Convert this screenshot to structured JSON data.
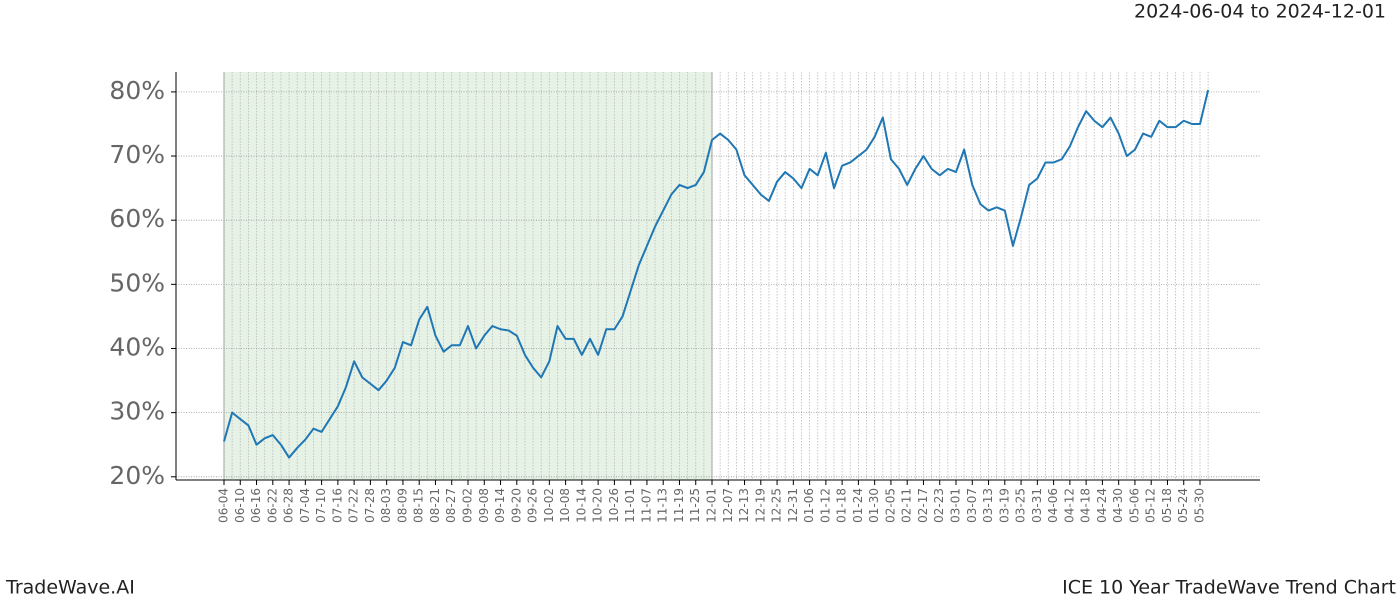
{
  "chart_data": {
    "type": "line",
    "title": "ICE 10 Year TradeWave Trend Chart",
    "subtitle": "2024-06-04 to 2024-12-01",
    "source": "TradeWave.AI",
    "color": "#1f77b4",
    "shade_color": "#e6f2e6",
    "shaded_range": [
      "06-04",
      "12-01"
    ],
    "grid": true,
    "ylim": [
      19.5,
      83.1
    ],
    "yticks": [
      {
        "value": 20,
        "label": "20%"
      },
      {
        "value": 30,
        "label": "30%"
      },
      {
        "value": 40,
        "label": "40%"
      },
      {
        "value": 50,
        "label": "50%"
      },
      {
        "value": 60,
        "label": "60%"
      },
      {
        "value": 70,
        "label": "70%"
      },
      {
        "value": 80,
        "label": "80%"
      }
    ],
    "categories": [
      "06-04",
      null,
      "06-10",
      null,
      "06-16",
      null,
      "06-22",
      null,
      "06-28",
      null,
      "07-04",
      null,
      "07-10",
      null,
      "07-16",
      null,
      "07-22",
      null,
      "07-28",
      null,
      "08-03",
      null,
      "08-09",
      null,
      "08-15",
      null,
      "08-21",
      null,
      "08-27",
      null,
      "09-02",
      null,
      "09-08",
      null,
      "09-14",
      null,
      "09-20",
      null,
      "09-26",
      null,
      "10-02",
      null,
      "10-08",
      null,
      "10-14",
      null,
      "10-20",
      null,
      "10-26",
      null,
      "11-01",
      null,
      "11-07",
      null,
      "11-13",
      null,
      "11-19",
      null,
      "11-25",
      null,
      "12-01",
      null,
      "12-07",
      null,
      "12-13",
      null,
      "12-19",
      null,
      "12-25",
      null,
      "12-31",
      null,
      "01-06",
      null,
      "01-12",
      null,
      "01-18",
      null,
      "01-24",
      null,
      "01-30",
      null,
      "02-05",
      null,
      "02-11",
      null,
      "02-17",
      null,
      "02-23",
      null,
      "03-01",
      null,
      "03-07",
      null,
      "03-13",
      null,
      "03-19",
      null,
      "03-25",
      null,
      "03-31",
      null,
      "04-06",
      null,
      "04-12",
      null,
      "04-18",
      null,
      "04-24",
      null,
      "04-30",
      null,
      "05-06",
      null,
      "05-12",
      null,
      "05-18",
      null,
      "05-24",
      null,
      "05-30",
      null
    ],
    "values": [
      25.5,
      30,
      29,
      28,
      25,
      26,
      26.5,
      25,
      23,
      24.5,
      25.8,
      27.5,
      27,
      29,
      31,
      34,
      38,
      35.5,
      34.5,
      33.5,
      35,
      37,
      41,
      40.5,
      44.5,
      46.5,
      42,
      39.5,
      40.5,
      40.5,
      43.5,
      40,
      42,
      43.5,
      43,
      42.8,
      42,
      39,
      37,
      35.5,
      38,
      43.5,
      41.5,
      41.5,
      39,
      41.5,
      39,
      43,
      43,
      45,
      49,
      53,
      56,
      59,
      61.5,
      64,
      65.5,
      65,
      65.5,
      67.5,
      72.5,
      73.5,
      72.5,
      71,
      67,
      65.5,
      64,
      63,
      66,
      67.5,
      66.5,
      65,
      68,
      67,
      70.5,
      65,
      68.5,
      69,
      70,
      71,
      73,
      76,
      69.5,
      68,
      65.5,
      68,
      70,
      68,
      67,
      68,
      67.5,
      71,
      65.5,
      62.5,
      61.5,
      62,
      61.5,
      56,
      60.5,
      65.5,
      66.5,
      69,
      69,
      69.5,
      71.5,
      74.5,
      77,
      75.5,
      74.5,
      76,
      73.5,
      70,
      71,
      73.5,
      73,
      75.5,
      74.5,
      74.5,
      75.5,
      75,
      75,
      80.3
    ]
  }
}
